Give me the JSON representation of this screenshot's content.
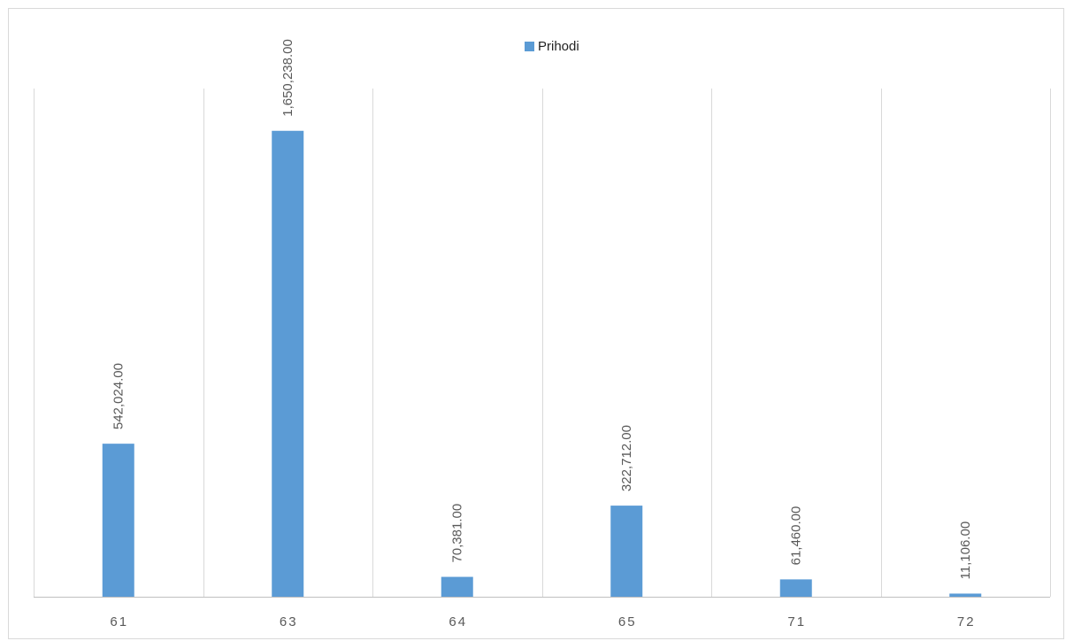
{
  "chart_data": {
    "type": "bar",
    "title": "",
    "xlabel": "",
    "ylabel": "",
    "categories": [
      "61",
      "63",
      "64",
      "65",
      "71",
      "72"
    ],
    "series": [
      {
        "name": "Prihodi",
        "values": [
          542024,
          1650238,
          70381,
          322712,
          61460,
          11106
        ],
        "labels": [
          "542,024.00",
          "1,650,238.00",
          "70,381.00",
          "322,712.00",
          "61,460.00",
          "11,106.00"
        ],
        "color": "#5b9bd5"
      }
    ],
    "ylim": [
      0,
      1800000
    ],
    "grid": "vertical",
    "legend_position": "top",
    "data_label_orientation": "vertical"
  }
}
